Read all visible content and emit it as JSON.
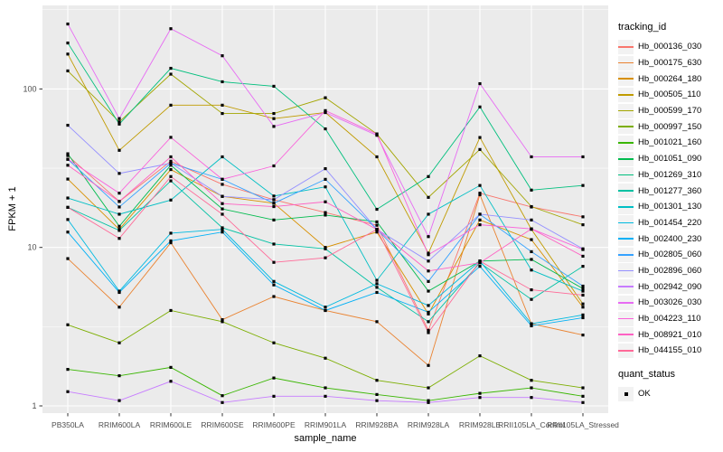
{
  "chart_data": {
    "type": "line",
    "title": "",
    "xlabel": "sample_name",
    "ylabel": "FPKM + 1",
    "yscale": "log10",
    "ylim": [
      0.9,
      340
    ],
    "y_major_ticks": [
      1,
      10,
      100
    ],
    "y_tick_labels": [
      "1",
      "10",
      "100"
    ],
    "grid": "on",
    "panel_color": "#EBEBEB",
    "grid_color": "#FFFFFF",
    "axis_text_color": "#4D4D4D",
    "point_color": "#000000",
    "point_shape": "square",
    "categories": [
      "PB350LA",
      "RRIM600LA",
      "RRIM600LE",
      "RRIM600SE",
      "RRIM600PE",
      "RRIM901LA",
      "RRIM928BA",
      "RRIM928LA",
      "RRIM928LE",
      "RRII105LA_Control",
      "RRII105LA_Stressed"
    ],
    "legend": {
      "tracking_title": "tracking_id",
      "quant_title": "quant_status",
      "quant_value": "OK"
    },
    "series": [
      {
        "name": "Hb_000136_030",
        "color": "#F8766D",
        "values": [
          38,
          19.5,
          35,
          25,
          20,
          16.6,
          13.8,
          3.0,
          22,
          18,
          15.6
        ]
      },
      {
        "name": "Hb_000175_630",
        "color": "#EA8331",
        "values": [
          8.5,
          4.2,
          10.7,
          3.5,
          4.9,
          4.0,
          3.4,
          1.8,
          21.5,
          3.3,
          2.8
        ]
      },
      {
        "name": "Hb_000264_180",
        "color": "#D89000",
        "values": [
          27,
          13,
          31,
          21,
          19,
          10,
          12.5,
          3.8,
          14.9,
          11.2,
          4.2
        ]
      },
      {
        "name": "Hb_000505_110",
        "color": "#C09B00",
        "values": [
          166,
          41,
          79,
          79,
          65,
          71,
          37.3,
          9.2,
          49.4,
          13,
          4.4
        ]
      },
      {
        "name": "Hb_000599_170",
        "color": "#A3A500",
        "values": [
          130,
          62,
          124,
          70,
          70,
          88,
          52,
          20.7,
          41.5,
          18.1,
          13.9
        ]
      },
      {
        "name": "Hb_000997_150",
        "color": "#7CAE00",
        "values": [
          3.25,
          2.5,
          4.0,
          3.4,
          2.5,
          2.0,
          1.45,
          1.3,
          2.07,
          1.45,
          1.3
        ]
      },
      {
        "name": "Hb_001021_160",
        "color": "#39B600",
        "values": [
          1.7,
          1.55,
          1.75,
          1.16,
          1.5,
          1.3,
          1.18,
          1.08,
          1.2,
          1.3,
          1.15
        ]
      },
      {
        "name": "Hb_001051_090",
        "color": "#00BB4E",
        "values": [
          39,
          13.6,
          33,
          17.5,
          14.9,
          16,
          14.5,
          5.3,
          8.2,
          8.4,
          5.5
        ]
      },
      {
        "name": "Hb_001269_310",
        "color": "#00BF7D",
        "values": [
          195,
          60,
          135,
          111,
          104,
          56,
          17.4,
          28,
          77,
          23,
          24.6
        ]
      },
      {
        "name": "Hb_001277_360",
        "color": "#00C1A3",
        "values": [
          17.9,
          12.8,
          26.3,
          13.3,
          10.5,
          9.8,
          5.6,
          3.4,
          8.0,
          4.7,
          7.6
        ]
      },
      {
        "name": "Hb_001301_130",
        "color": "#00BFC4",
        "values": [
          20.5,
          16.2,
          19.9,
          37.3,
          21.1,
          24.1,
          6.2,
          16.2,
          24.6,
          7.2,
          5.3
        ]
      },
      {
        "name": "Hb_001454_220",
        "color": "#00BAE0",
        "values": [
          15,
          5.3,
          12.3,
          13,
          6.1,
          4.2,
          5.9,
          4.3,
          8.2,
          3.3,
          3.75
        ]
      },
      {
        "name": "Hb_002400_230",
        "color": "#00B0F6",
        "values": [
          12.5,
          5.2,
          11,
          12.5,
          5.8,
          4.0,
          5.2,
          3.9,
          7.6,
          3.2,
          3.6
        ]
      },
      {
        "name": "Hb_002805_060",
        "color": "#35A2FF",
        "values": [
          36,
          18,
          34,
          26.9,
          19,
          26.9,
          13,
          6.1,
          16.2,
          9.4,
          5.7
        ]
      },
      {
        "name": "Hb_002896_060",
        "color": "#9590FF",
        "values": [
          59,
          29.3,
          34,
          21,
          20,
          31.4,
          13,
          8.2,
          16.2,
          14.9,
          9.8
        ]
      },
      {
        "name": "Hb_002942_090",
        "color": "#C77CFF",
        "values": [
          1.23,
          1.08,
          1.43,
          1.05,
          1.15,
          1.15,
          1.08,
          1.05,
          1.13,
          1.13,
          1.05
        ]
      },
      {
        "name": "Hb_003026_030",
        "color": "#E76BF3",
        "values": [
          257,
          65,
          240,
          162,
          58,
          71,
          51,
          11.7,
          108,
          37.3,
          37.3
        ]
      },
      {
        "name": "Hb_004223_110",
        "color": "#FA62DB",
        "values": [
          36,
          22,
          49.5,
          26.9,
          32.7,
          73,
          52,
          9.0,
          13.9,
          13.1,
          9.7
        ]
      },
      {
        "name": "Hb_008921_010",
        "color": "#FF61C3",
        "values": [
          33,
          19.5,
          37.3,
          18.9,
          18.1,
          19.4,
          13,
          7.1,
          8.0,
          13.1,
          8.8
        ]
      },
      {
        "name": "Hb_044155_010",
        "color": "#FF6A98",
        "values": [
          17.9,
          11.4,
          28,
          16.2,
          8.05,
          8.6,
          13,
          2.9,
          8.2,
          5.4,
          5.0
        ]
      }
    ]
  }
}
